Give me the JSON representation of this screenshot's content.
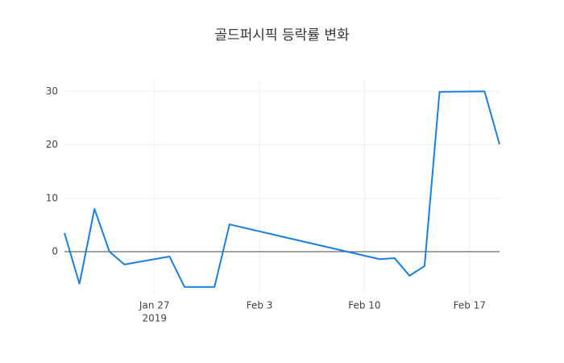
{
  "chart_data": {
    "type": "line",
    "title": "골드퍼시픽 등락률 변화",
    "x": [
      "2019-01-21",
      "2019-01-22",
      "2019-01-23",
      "2019-01-24",
      "2019-01-25",
      "2019-01-28",
      "2019-01-29",
      "2019-01-31",
      "2019-02-01",
      "2019-02-11",
      "2019-02-12",
      "2019-02-13",
      "2019-02-14",
      "2019-02-15",
      "2019-02-18",
      "2019-02-19"
    ],
    "series": [
      {
        "color": "#1a7fe0",
        "values": [
          3.5,
          -6.0,
          8.0,
          0.0,
          -2.4,
          -0.9,
          -6.6,
          -6.6,
          5.1,
          -1.4,
          -1.2,
          -4.5,
          -2.7,
          29.9,
          30.0,
          20.1
        ]
      }
    ],
    "xlim": [
      "2019-01-21",
      "2019-02-19"
    ],
    "xticks": [
      {
        "value": "2019-01-27",
        "label": "Jan 27",
        "year": "2019"
      },
      {
        "value": "2019-02-03",
        "label": "Feb 3"
      },
      {
        "value": "2019-02-10",
        "label": "Feb 10"
      },
      {
        "value": "2019-02-17",
        "label": "Feb 17"
      }
    ],
    "ylim": [
      -8,
      32
    ],
    "yticks": [
      0,
      10,
      20,
      30
    ],
    "grid": true
  }
}
